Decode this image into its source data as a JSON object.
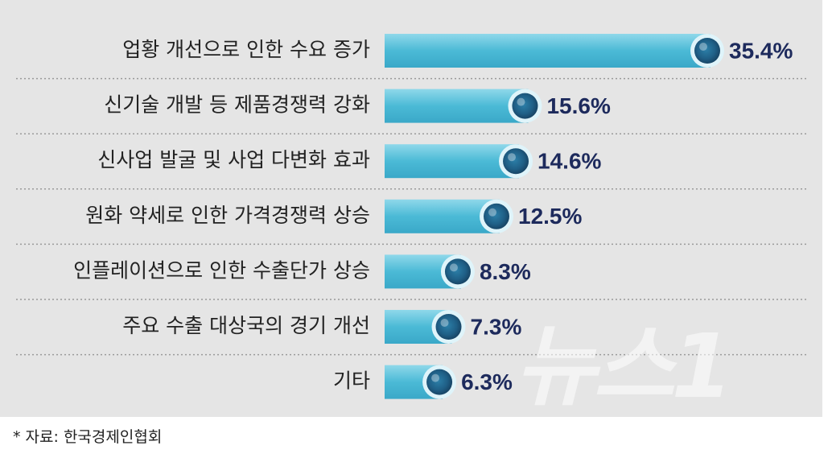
{
  "chart_data": {
    "type": "bar",
    "orientation": "horizontal",
    "categories": [
      "업황 개선으로 인한 수요 증가",
      "신기술 개발 등 제품경쟁력 강화",
      "신사업 발굴 및 사업 다변화 효과",
      "원화 약세로 인한 가격경쟁력 상승",
      "인플레이션으로 인한 수출단가 상승",
      "주요 수출 대상국의 경기 개선",
      "기타"
    ],
    "values": [
      35.4,
      15.6,
      14.6,
      12.5,
      8.3,
      7.3,
      6.3
    ],
    "value_labels": [
      "35.4%",
      "15.6%",
      "14.6%",
      "12.5%",
      "8.3%",
      "7.3%",
      "6.3%"
    ],
    "unit": "%",
    "xlim": [
      0,
      35.4
    ],
    "grid": false,
    "colors": {
      "bar": "#4bbad6",
      "bar_light": "#8fd8ea",
      "knob": "#1f5f86",
      "value_text": "#1d2a5c"
    }
  },
  "source": "* 자료: 한국경제인협회",
  "watermark": "뉴스1"
}
